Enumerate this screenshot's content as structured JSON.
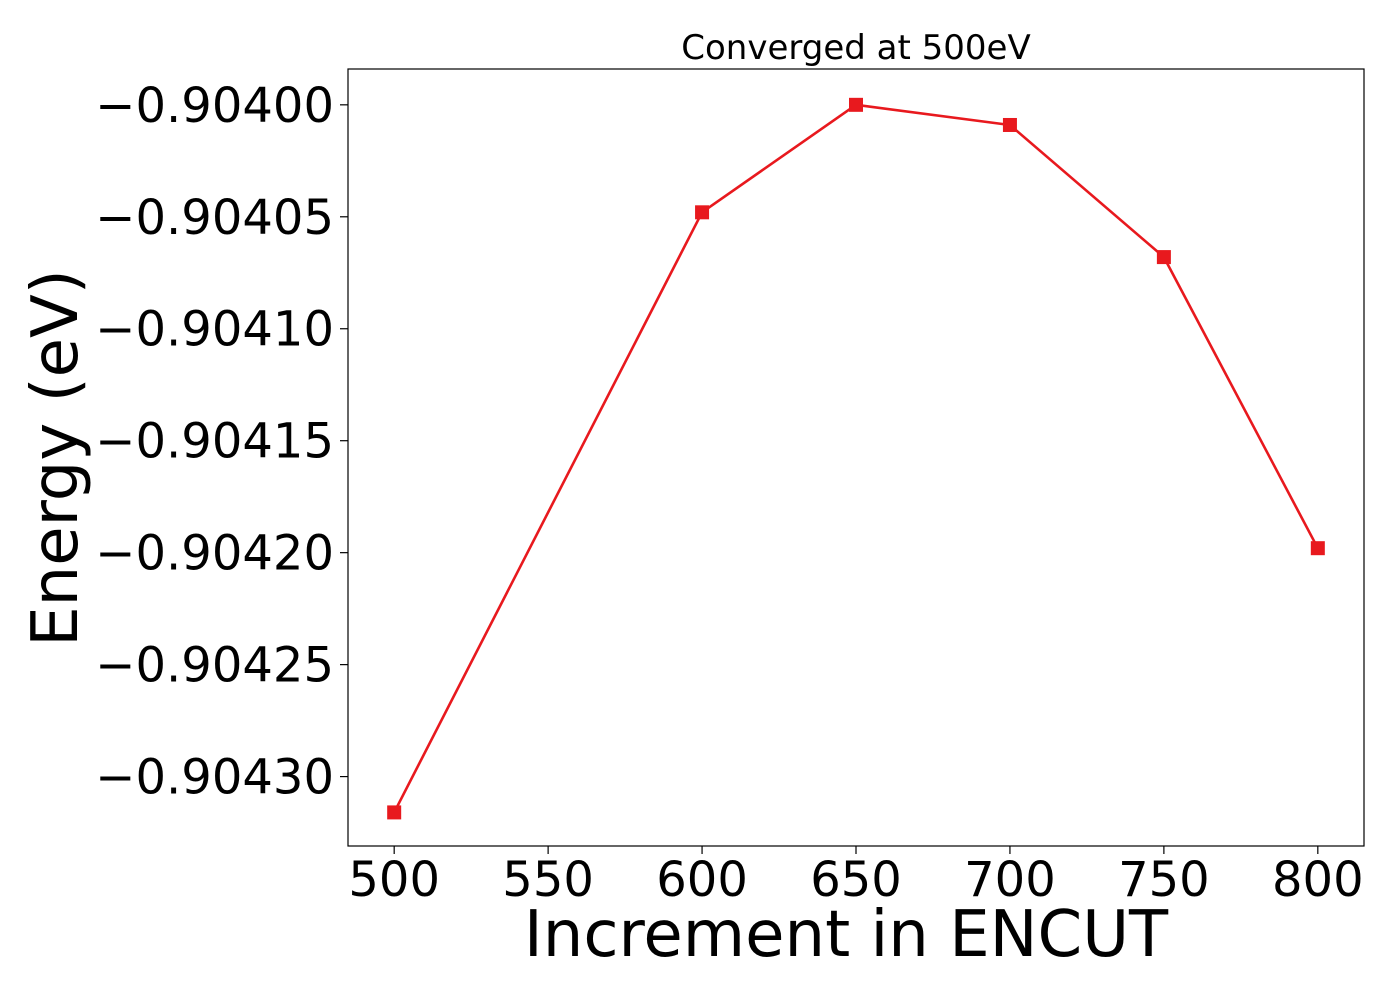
{
  "chart_data": {
    "type": "line",
    "title": "Converged at 500eV",
    "xlabel": "Increment in ENCUT",
    "ylabel": "Energy (eV)",
    "x": [
      500,
      600,
      650,
      700,
      750,
      800
    ],
    "series": [
      {
        "values": [
          -0.904316,
          -0.904048,
          -0.904,
          -0.904009,
          -0.904068,
          -0.904198
        ],
        "color": "#e8191e",
        "marker": "square"
      }
    ],
    "xlim": [
      485,
      815
    ],
    "ylim": [
      -0.904331,
      -0.903984
    ],
    "xticks": [
      500,
      550,
      600,
      650,
      700,
      750,
      800
    ],
    "xtick_labels": [
      "500",
      "550",
      "600",
      "650",
      "700",
      "750",
      "800"
    ],
    "yticks": [
      -0.9043,
      -0.90425,
      -0.9042,
      -0.90415,
      -0.9041,
      -0.90405,
      -0.904
    ],
    "ytick_labels": [
      "−0.90430",
      "−0.90425",
      "−0.90420",
      "−0.90415",
      "−0.90410",
      "−0.90405",
      "−0.90400"
    ],
    "grid": false,
    "legend": "none"
  }
}
